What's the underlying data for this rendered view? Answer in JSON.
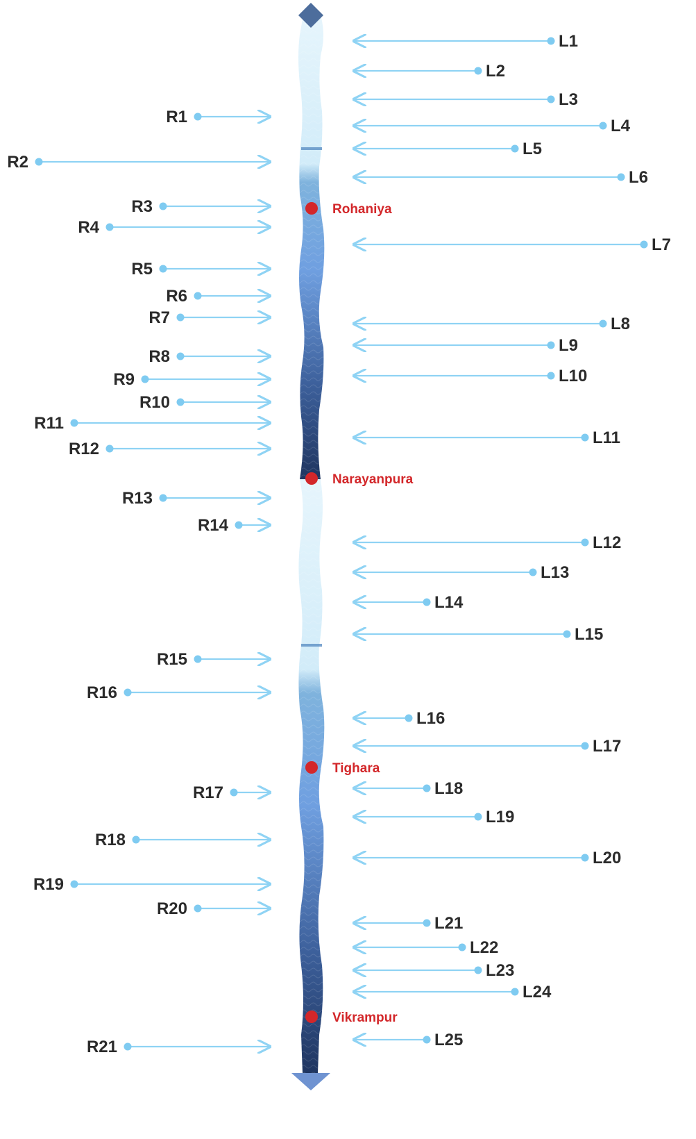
{
  "colors": {
    "tributary_line": "#8fd3f4",
    "tributary_dot": "#7fcbf1",
    "place_marker": "#d3272a",
    "place_text": "#d3272a",
    "label_text": "#2b2b2b",
    "river_light": "#dff2fb",
    "river_mid": "#6f9fe0",
    "river_dark": "#1f3560",
    "source_marker": "#4d6d9c",
    "mouth_marker": "#6f93d1"
  },
  "icons": {
    "source": "diamond-icon",
    "mouth": "arrow-down-icon",
    "place": "location-dot-icon"
  },
  "places": [
    {
      "name": "Rohaniya"
    },
    {
      "name": "Narayanpura"
    },
    {
      "name": "Tighara"
    },
    {
      "name": "Vikrampur"
    }
  ],
  "right_tributaries": [
    {
      "label": "R1"
    },
    {
      "label": "R2"
    },
    {
      "label": "R3"
    },
    {
      "label": "R4"
    },
    {
      "label": "R5"
    },
    {
      "label": "R6"
    },
    {
      "label": "R7"
    },
    {
      "label": "R8"
    },
    {
      "label": "R9"
    },
    {
      "label": "R10"
    },
    {
      "label": "R11"
    },
    {
      "label": "R12"
    },
    {
      "label": "R13"
    },
    {
      "label": "R14"
    },
    {
      "label": "R15"
    },
    {
      "label": "R16"
    },
    {
      "label": "R17"
    },
    {
      "label": "R18"
    },
    {
      "label": "R19"
    },
    {
      "label": "R20"
    },
    {
      "label": "R21"
    }
  ],
  "left_tributaries": [
    {
      "label": "L1"
    },
    {
      "label": "L2"
    },
    {
      "label": "L3"
    },
    {
      "label": "L4"
    },
    {
      "label": "L5"
    },
    {
      "label": "L6"
    },
    {
      "label": "L7"
    },
    {
      "label": "L8"
    },
    {
      "label": "L9"
    },
    {
      "label": "L10"
    },
    {
      "label": "L11"
    },
    {
      "label": "L12"
    },
    {
      "label": "L13"
    },
    {
      "label": "L14"
    },
    {
      "label": "L15"
    },
    {
      "label": "L16"
    },
    {
      "label": "L17"
    },
    {
      "label": "L18"
    },
    {
      "label": "L19"
    },
    {
      "label": "L20"
    },
    {
      "label": "L21"
    },
    {
      "label": "L22"
    },
    {
      "label": "L23"
    },
    {
      "label": "L24"
    },
    {
      "label": "L25"
    }
  ]
}
